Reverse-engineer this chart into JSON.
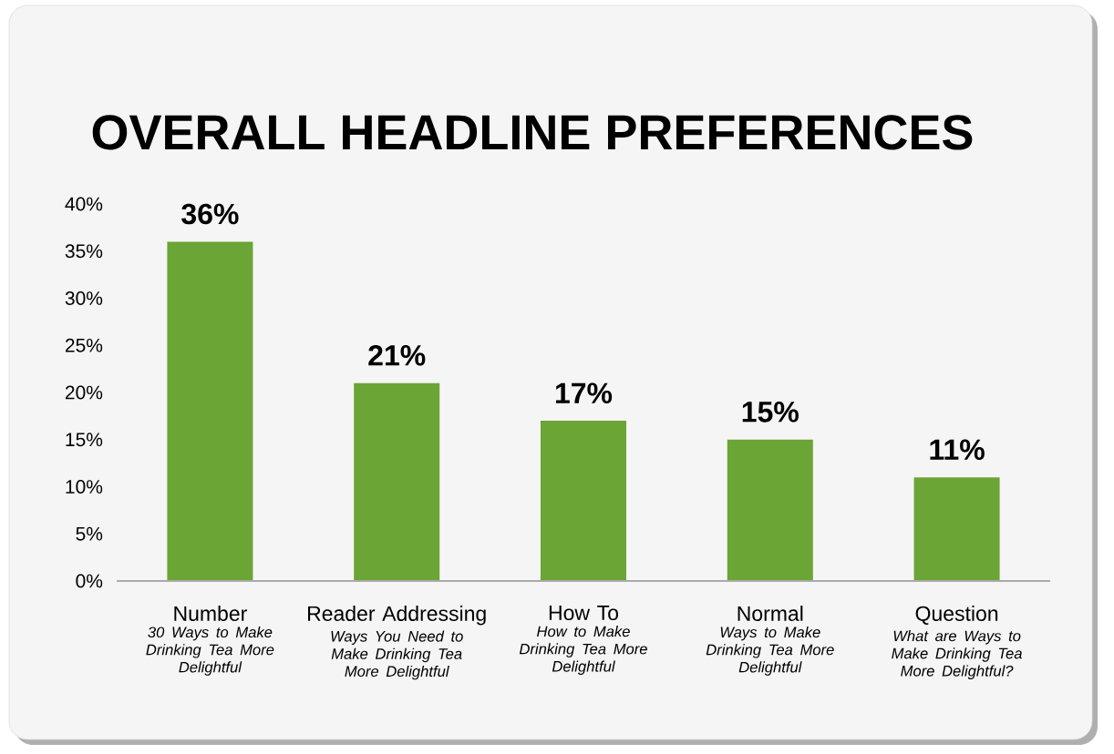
{
  "chart_data": {
    "type": "bar",
    "title": "OVERALL HEADLINE PREFERENCES",
    "categories": [
      "Number *30 Ways to Make Drinking Tea More Delightful*",
      "Reader Addressing *Ways You Need to Make Drinking Tea More Delightful*",
      "How To *How to Make Drinking Tea More Delightful*",
      "Normal *Ways to Make Drinking Tea More Delightful*",
      "Question *What are Ways to Make Drinking Tea More Delightful?*"
    ],
    "values": [
      36,
      21,
      17,
      15,
      11
    ],
    "value_labels": [
      "36%",
      "21%",
      "17%",
      "15%",
      "11%"
    ],
    "color": "#6aa535",
    "ylim": [
      0,
      40
    ],
    "yticks": [
      {
        "value": 0,
        "label": "0%"
      },
      {
        "value": 5,
        "label": "5%"
      },
      {
        "value": 10,
        "label": "10%"
      },
      {
        "value": 15,
        "label": "15%"
      },
      {
        "value": 20,
        "label": "20%"
      },
      {
        "value": 25,
        "label": "25%"
      },
      {
        "value": 30,
        "label": "30%"
      },
      {
        "value": 35,
        "label": "35%"
      },
      {
        "value": 40,
        "label": "40%"
      }
    ]
  }
}
